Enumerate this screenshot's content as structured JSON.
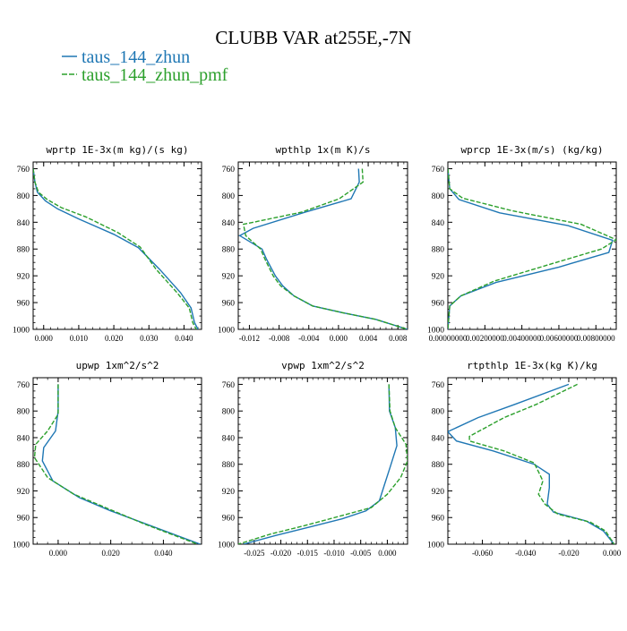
{
  "title": "CLUBB VAR at255E,-7N",
  "legend": [
    {
      "label": "taus_144_zhun",
      "color": "#1f77b4"
    },
    {
      "label": "taus_144_zhun_pmf",
      "color": "#2ca02c"
    }
  ],
  "chart_data": [
    {
      "type": "line",
      "title": "wprtp  1E-3x(m kg)/(s kg)",
      "xlim": [
        -0.003,
        0.045
      ],
      "ylim": [
        1000,
        750
      ],
      "xticks": [
        0,
        0.01,
        0.02,
        0.03,
        0.04
      ],
      "xtick_labels": [
        "0.000",
        "0.010",
        "0.020",
        "0.030",
        "0.040"
      ],
      "yticks": [
        760,
        800,
        840,
        880,
        920,
        960,
        1000
      ],
      "series": [
        {
          "name": "taus_144_zhun",
          "color": "#1f77b4",
          "dashed": false,
          "x": [
            -0.003,
            -0.0025,
            -0.0018,
            0.0005,
            0.004,
            0.01,
            0.02,
            0.027,
            0.033,
            0.039,
            0.042,
            0.043,
            0.044
          ],
          "y": [
            760,
            780,
            795,
            808,
            820,
            835,
            858,
            878,
            910,
            945,
            968,
            990,
            1000
          ]
        },
        {
          "name": "taus_144_zhun_pmf",
          "color": "#2ca02c",
          "dashed": true,
          "x": [
            -0.003,
            -0.0025,
            -0.0015,
            0.001,
            0.005,
            0.012,
            0.021,
            0.0275,
            0.032,
            0.038,
            0.0415,
            0.0425,
            0.0435
          ],
          "y": [
            760,
            780,
            795,
            806,
            818,
            832,
            855,
            877,
            910,
            945,
            968,
            990,
            1000
          ]
        }
      ]
    },
    {
      "type": "line",
      "title": "wpthlp  1x(m K)/s",
      "xlim": [
        -0.0135,
        0.0093
      ],
      "ylim": [
        1000,
        750
      ],
      "xticks": [
        -0.012,
        -0.008,
        -0.004,
        0,
        0.004,
        0.008
      ],
      "xtick_labels": [
        "-0.012",
        "-0.008",
        "-0.004",
        "0.000",
        "0.004",
        "0.008"
      ],
      "yticks": [
        760,
        800,
        840,
        880,
        920,
        960,
        1000
      ],
      "series": [
        {
          "name": "taus_144_zhun",
          "color": "#1f77b4",
          "dashed": false,
          "x": [
            0.0027,
            0.0028,
            0.0017,
            -0.0045,
            -0.0115,
            -0.0133,
            -0.0103,
            -0.0097,
            -0.0085,
            -0.0075,
            -0.006,
            -0.0035,
            0.0005,
            0.005,
            0.0093
          ],
          "y": [
            760,
            780,
            805,
            825,
            849,
            860,
            880,
            895,
            920,
            935,
            950,
            965,
            975,
            985,
            1000
          ]
        },
        {
          "name": "taus_144_zhun_pmf",
          "color": "#2ca02c",
          "dashed": true,
          "x": [
            0.0032,
            0.0033,
            0.0001,
            -0.005,
            -0.0128,
            -0.0125,
            -0.0105,
            -0.0099,
            -0.0088,
            -0.0078,
            -0.006,
            -0.0035,
            0.0005,
            0.005,
            0.0093
          ],
          "y": [
            760,
            780,
            805,
            825,
            843,
            860,
            880,
            895,
            920,
            935,
            950,
            965,
            975,
            985,
            1000
          ]
        }
      ]
    },
    {
      "type": "line",
      "title": "wprcp  1E-3x(m/s) (kg/kg)",
      "xlim": [
        0,
        0.0091
      ],
      "ylim": [
        1000,
        750
      ],
      "xticks": [
        0,
        0.002,
        0.004,
        0.006,
        0.008
      ],
      "xtick_labels": [
        "0.00000000",
        "0.00200000",
        "0.00400000",
        "0.00600000",
        "0.00800000"
      ],
      "yticks": [
        760,
        800,
        840,
        880,
        920,
        960,
        1000
      ],
      "series": [
        {
          "name": "taus_144_zhun",
          "color": "#1f77b4",
          "dashed": false,
          "x": [
            0,
            0.0001,
            0.0006,
            0.0028,
            0.0065,
            0.0089,
            0.0087,
            0.006,
            0.0026,
            0.0007,
            0.0001,
            0
          ],
          "y": [
            760,
            790,
            806,
            826,
            845,
            867,
            885,
            907,
            930,
            950,
            965,
            1000
          ]
        },
        {
          "name": "taus_144_zhun_pmf",
          "color": "#2ca02c",
          "dashed": true,
          "x": [
            0,
            0.0001,
            0.0008,
            0.0035,
            0.0072,
            0.0091,
            0.0083,
            0.0055,
            0.0025,
            0.0007,
            0.0001,
            0
          ],
          "y": [
            760,
            790,
            804,
            823,
            843,
            866,
            880,
            903,
            928,
            950,
            965,
            1000
          ]
        }
      ]
    },
    {
      "type": "line",
      "title": "upwp  1xm^2/s^2",
      "xlim": [
        -0.0095,
        0.0545
      ],
      "ylim": [
        1000,
        750
      ],
      "xticks": [
        0,
        0.02,
        0.04
      ],
      "xtick_labels": [
        "0.000",
        "0.020",
        "0.040"
      ],
      "yticks": [
        760,
        800,
        840,
        880,
        920,
        960,
        1000
      ],
      "series": [
        {
          "name": "taus_144_zhun",
          "color": "#1f77b4",
          "dashed": false,
          "x": [
            0.0,
            0.0,
            -0.001,
            -0.0055,
            -0.006,
            -0.002,
            0.008,
            0.02,
            0.035,
            0.054
          ],
          "y": [
            760,
            800,
            830,
            855,
            875,
            905,
            930,
            950,
            972,
            1000
          ]
        },
        {
          "name": "taus_144_zhun_pmf",
          "color": "#2ca02c",
          "dashed": true,
          "x": [
            0.0,
            0.0,
            -0.004,
            -0.0085,
            -0.009,
            -0.004,
            0.006,
            0.018,
            0.033,
            0.053
          ],
          "y": [
            760,
            805,
            830,
            850,
            870,
            900,
            925,
            945,
            970,
            1000
          ]
        }
      ]
    },
    {
      "type": "line",
      "title": "vpwp  1xm^2/s^2",
      "xlim": [
        -0.028,
        0.0038
      ],
      "ylim": [
        1000,
        750
      ],
      "xticks": [
        -0.025,
        -0.02,
        -0.015,
        -0.01,
        -0.005,
        0
      ],
      "xtick_labels": [
        "-0.025",
        "-0.020",
        "-0.015",
        "-0.010",
        "-0.005",
        "0.000"
      ],
      "yticks": [
        760,
        800,
        840,
        880,
        920,
        960,
        1000
      ],
      "series": [
        {
          "name": "taus_144_zhun",
          "color": "#1f77b4",
          "dashed": false,
          "x": [
            0.0003,
            0.0004,
            0.0015,
            0.0018,
            0.0005,
            -0.0005,
            -0.0015,
            -0.004,
            -0.0085,
            -0.015,
            -0.021,
            -0.027
          ],
          "y": [
            760,
            800,
            825,
            852,
            885,
            910,
            935,
            950,
            962,
            975,
            987,
            1000
          ]
        },
        {
          "name": "taus_144_zhun_pmf",
          "color": "#2ca02c",
          "dashed": true,
          "x": [
            0.0003,
            0.0005,
            0.0015,
            0.0035,
            0.0038,
            0.0025,
            0.0,
            -0.003,
            -0.009,
            -0.0155,
            -0.022,
            -0.028
          ],
          "y": [
            760,
            800,
            825,
            850,
            875,
            900,
            925,
            945,
            958,
            972,
            985,
            1000
          ]
        }
      ]
    },
    {
      "type": "line",
      "title": "rtpthlp  1E-3x(kg K)/kg",
      "xlim": [
        -0.076,
        0.002
      ],
      "ylim": [
        1000,
        750
      ],
      "xticks": [
        -0.06,
        -0.04,
        -0.02,
        0
      ],
      "xtick_labels": [
        "-0.060",
        "-0.040",
        "-0.020",
        "0.000"
      ],
      "yticks": [
        760,
        800,
        840,
        880,
        920,
        960,
        1000
      ],
      "series": [
        {
          "name": "taus_144_zhun",
          "color": "#1f77b4",
          "dashed": false,
          "x": [
            -0.02,
            -0.045,
            -0.062,
            -0.076,
            -0.072,
            -0.055,
            -0.036,
            -0.029,
            -0.029,
            -0.03,
            -0.027,
            -0.012,
            -0.004,
            0.001
          ],
          "y": [
            760,
            790,
            810,
            831,
            845,
            860,
            880,
            895,
            915,
            940,
            952,
            965,
            980,
            1000
          ]
        },
        {
          "name": "taus_144_zhun_pmf",
          "color": "#2ca02c",
          "dashed": true,
          "x": [
            -0.016,
            -0.035,
            -0.05,
            -0.066,
            -0.066,
            -0.05,
            -0.036,
            -0.032,
            -0.034,
            -0.031,
            -0.025,
            -0.01,
            -0.003,
            0.001
          ],
          "y": [
            760,
            790,
            810,
            838,
            845,
            860,
            878,
            905,
            925,
            940,
            955,
            967,
            980,
            1000
          ]
        }
      ]
    }
  ]
}
